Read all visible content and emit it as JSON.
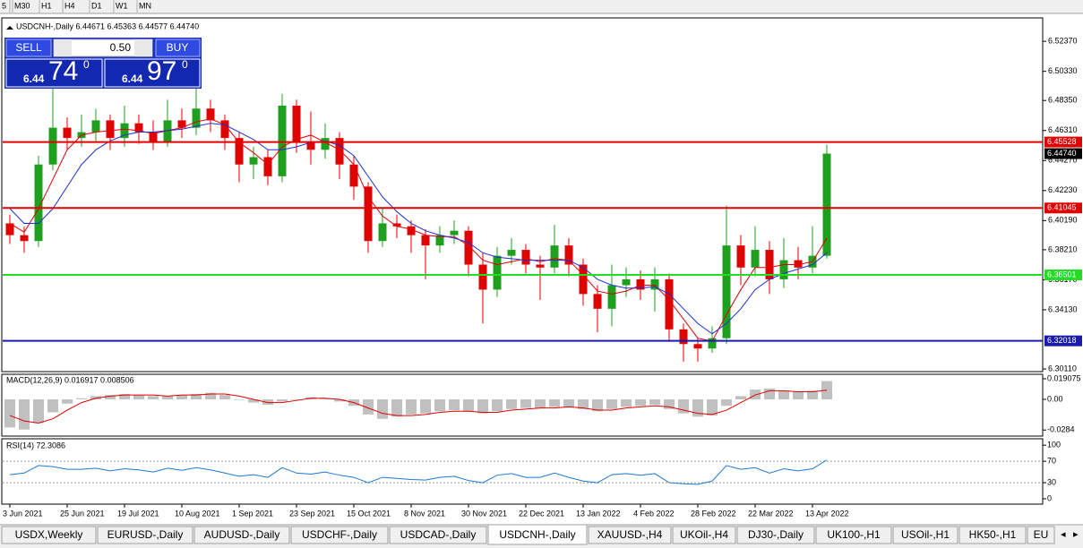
{
  "toolbar": [
    "5",
    "M30",
    "H1",
    "H4",
    "D1",
    "W1",
    "MN"
  ],
  "trade_panel": {
    "sell": "SELL",
    "lot": "0.50",
    "buy": "BUY",
    "bid": {
      "big": "6.44",
      "main": "74",
      "sup": "0"
    },
    "ask": {
      "big": "6.44",
      "main": "97",
      "sup": "0"
    }
  },
  "tabs": [
    "USDX,Weekly",
    "EURUSD-,Daily",
    "AUDUSD-,Daily",
    "USDCHF-,Daily",
    "USDCAD-,Daily",
    "USDCNH-,Daily",
    "XAUUSD-,H4",
    "UKOil-,H4",
    "DJ30-,Daily",
    "UK100-,H1",
    "USOil-,H1",
    "HK50-,H1",
    "EU"
  ],
  "active_tab": 5,
  "chart_data": [
    {
      "type": "candlestick",
      "title": "USDCNH-,Daily  6.44671 6.45363 6.44577 6.44740",
      "x": [
        "3 Jun 2021",
        null,
        null,
        null,
        "25 Jun 2021",
        null,
        null,
        null,
        "19 Jul 2021",
        null,
        null,
        null,
        "10 Aug 2021",
        null,
        null,
        null,
        "1 Sep 2021",
        null,
        null,
        null,
        "23 Sep 2021",
        null,
        null,
        null,
        "15 Oct 2021",
        null,
        null,
        null,
        "8 Nov 2021",
        null,
        null,
        null,
        "30 Nov 2021",
        null,
        null,
        null,
        "22 Dec 2021",
        null,
        null,
        null,
        "13 Jan 2022",
        null,
        null,
        null,
        "4 Feb 2022",
        null,
        null,
        null,
        "28 Feb 2022",
        null,
        null,
        null,
        "22 Mar 2022",
        null,
        null,
        null,
        "13 Apr 2022",
        null
      ],
      "open": [
        6.4,
        6.392,
        6.388,
        6.44,
        6.465,
        6.458,
        6.462,
        6.47,
        6.458,
        6.468,
        6.462,
        6.455,
        6.47,
        6.465,
        6.478,
        6.47,
        6.458,
        6.44,
        6.445,
        6.432,
        6.48,
        6.455,
        6.45,
        6.458,
        6.44,
        6.425,
        6.388,
        6.4,
        6.398,
        6.392,
        6.385,
        6.392,
        6.395,
        6.372,
        6.355,
        6.378,
        6.382,
        6.372,
        6.37,
        6.385,
        6.372,
        6.352,
        6.342,
        6.358,
        6.362,
        6.355,
        6.362,
        6.328,
        6.318,
        6.315,
        6.322,
        6.385,
        6.37,
        6.382,
        6.362,
        6.375,
        6.37,
        6.378
      ],
      "high": [
        6.406,
        6.398,
        6.446,
        6.492,
        6.472,
        6.474,
        6.478,
        6.474,
        6.48,
        6.474,
        6.47,
        6.484,
        6.478,
        6.5,
        6.484,
        6.474,
        6.462,
        6.452,
        6.45,
        6.488,
        6.484,
        6.476,
        6.468,
        6.462,
        6.446,
        6.428,
        6.41,
        6.406,
        6.402,
        6.396,
        6.398,
        6.402,
        6.398,
        6.38,
        6.384,
        6.39,
        6.386,
        6.378,
        6.399,
        6.39,
        6.376,
        6.358,
        6.372,
        6.37,
        6.368,
        6.37,
        6.366,
        6.332,
        6.322,
        6.33,
        6.412,
        6.392,
        6.398,
        6.388,
        6.39,
        6.384,
        6.398,
        6.45363
      ],
      "low": [
        6.386,
        6.38,
        6.384,
        6.436,
        6.45,
        6.452,
        6.456,
        6.45,
        6.452,
        6.454,
        6.45,
        6.452,
        6.458,
        6.46,
        6.462,
        6.45,
        6.428,
        6.43,
        6.426,
        6.428,
        6.448,
        6.44,
        6.444,
        6.43,
        6.416,
        6.38,
        6.384,
        6.39,
        6.38,
        6.362,
        6.38,
        6.386,
        6.364,
        6.332,
        6.35,
        6.372,
        6.366,
        6.348,
        6.366,
        6.364,
        6.344,
        6.326,
        6.33,
        6.35,
        6.348,
        6.34,
        6.32,
        6.306,
        6.306,
        6.312,
        6.318,
        6.358,
        6.364,
        6.352,
        6.356,
        6.362,
        6.366,
        6.376
      ],
      "close": [
        6.392,
        6.388,
        6.44,
        6.465,
        6.458,
        6.462,
        6.47,
        6.458,
        6.468,
        6.462,
        6.455,
        6.47,
        6.465,
        6.478,
        6.47,
        6.458,
        6.44,
        6.445,
        6.432,
        6.48,
        6.455,
        6.45,
        6.458,
        6.44,
        6.425,
        6.388,
        6.4,
        6.398,
        6.392,
        6.385,
        6.392,
        6.395,
        6.372,
        6.355,
        6.378,
        6.382,
        6.372,
        6.37,
        6.385,
        6.372,
        6.352,
        6.342,
        6.358,
        6.362,
        6.355,
        6.362,
        6.328,
        6.318,
        6.315,
        6.322,
        6.385,
        6.37,
        6.382,
        6.362,
        6.375,
        6.37,
        6.378,
        6.4474
      ],
      "up_color": "#1ea01e",
      "down_color": "#e00000",
      "moving_averages": [
        {
          "color": "#e00000",
          "values": [
            6.4,
            6.394,
            6.41,
            6.43,
            6.45,
            6.46,
            6.462,
            6.463,
            6.464,
            6.463,
            6.461,
            6.463,
            6.465,
            6.469,
            6.471,
            6.467,
            6.455,
            6.448,
            6.44,
            6.452,
            6.457,
            6.46,
            6.455,
            6.45,
            6.44,
            6.418,
            6.405,
            6.398,
            6.396,
            6.392,
            6.391,
            6.391,
            6.385,
            6.375,
            6.372,
            6.374,
            6.376,
            6.374,
            6.376,
            6.375,
            6.365,
            6.354,
            6.352,
            6.354,
            6.358,
            6.358,
            6.348,
            6.335,
            6.322,
            6.32,
            6.338,
            6.355,
            6.37,
            6.37,
            6.372,
            6.372,
            6.374,
            6.39
          ]
        },
        {
          "color": "#1f2fd0",
          "values": [
            6.41,
            6.4,
            6.4,
            6.41,
            6.425,
            6.44,
            6.45,
            6.456,
            6.46,
            6.462,
            6.462,
            6.463,
            6.464,
            6.466,
            6.468,
            6.467,
            6.462,
            6.457,
            6.45,
            6.45,
            6.452,
            6.455,
            6.456,
            6.453,
            6.446,
            6.432,
            6.418,
            6.408,
            6.4,
            6.395,
            6.392,
            6.39,
            6.387,
            6.38,
            6.377,
            6.376,
            6.375,
            6.375,
            6.375,
            6.375,
            6.37,
            6.362,
            6.358,
            6.356,
            6.356,
            6.357,
            6.352,
            6.342,
            6.332,
            6.325,
            6.332,
            6.342,
            6.355,
            6.362,
            6.366,
            6.369,
            6.372,
            6.38
          ]
        }
      ],
      "ylim": [
        6.2993,
        6.5396
      ],
      "yticks": [
        {
          "value": 6.5237,
          "label": "6.52370"
        },
        {
          "value": 6.5033,
          "label": "6.50330"
        },
        {
          "value": 6.4835,
          "label": "6.48350"
        },
        {
          "value": 6.4631,
          "label": "6.46310"
        },
        {
          "value": 6.4427,
          "label": "6.44270"
        },
        {
          "value": 6.4223,
          "label": "6.42230"
        },
        {
          "value": 6.4019,
          "label": "6.40190"
        },
        {
          "value": 6.3821,
          "label": "6.38210"
        },
        {
          "value": 6.3617,
          "label": "6.36170"
        },
        {
          "value": 6.3413,
          "label": "6.34130"
        },
        {
          "value": 6.3011,
          "label": "6.30110"
        }
      ],
      "levels": [
        {
          "value": 6.45528,
          "label": "6.45528",
          "color": "#e00000"
        },
        {
          "value": 6.41045,
          "label": "6.41045",
          "color": "#e00000"
        },
        {
          "value": 6.36501,
          "label": "6.36501",
          "color": "#22dd22"
        },
        {
          "value": 6.32018,
          "label": "6.32018",
          "color": "#1a1ab0"
        }
      ],
      "last_price": {
        "value": 6.4474,
        "label": "6.44740"
      }
    },
    {
      "type": "macd",
      "title": "MACD(12,26,9) 0.016917 0.008506",
      "histogram": {
        "color": "#c0c0c0",
        "values": [
          -0.026,
          -0.028,
          -0.022,
          -0.012,
          -0.004,
          0.001,
          0.003,
          0.004,
          0.005,
          0.004,
          0.003,
          0.003,
          0.004,
          0.005,
          0.006,
          0.004,
          0.0,
          -0.003,
          -0.005,
          -0.002,
          0.0,
          0.002,
          0.001,
          -0.002,
          -0.006,
          -0.014,
          -0.018,
          -0.016,
          -0.014,
          -0.013,
          -0.011,
          -0.01,
          -0.011,
          -0.013,
          -0.011,
          -0.009,
          -0.008,
          -0.008,
          -0.007,
          -0.007,
          -0.009,
          -0.011,
          -0.009,
          -0.007,
          -0.006,
          -0.005,
          -0.009,
          -0.013,
          -0.016,
          -0.015,
          -0.006,
          0.003,
          0.009,
          0.01,
          0.008,
          0.007,
          0.008,
          0.016917
        ]
      },
      "signal": {
        "color": "#e00000",
        "values": [
          -0.015,
          -0.02,
          -0.022,
          -0.018,
          -0.01,
          -0.003,
          0.001,
          0.003,
          0.004,
          0.004,
          0.004,
          0.003,
          0.004,
          0.004,
          0.005,
          0.005,
          0.003,
          0.0,
          -0.003,
          -0.003,
          -0.001,
          0.001,
          0.001,
          0.0,
          -0.003,
          -0.008,
          -0.013,
          -0.015,
          -0.015,
          -0.014,
          -0.012,
          -0.011,
          -0.011,
          -0.012,
          -0.012,
          -0.01,
          -0.009,
          -0.008,
          -0.008,
          -0.007,
          -0.008,
          -0.01,
          -0.01,
          -0.008,
          -0.007,
          -0.006,
          -0.007,
          -0.01,
          -0.013,
          -0.014,
          -0.01,
          -0.003,
          0.004,
          0.008,
          0.008,
          0.007,
          0.007,
          0.008506
        ]
      },
      "ylim": [
        -0.034,
        0.0232
      ],
      "yticks": [
        0.019075,
        {
          "value": 0,
          "label": "0.00"
        },
        -0.0284
      ]
    },
    {
      "type": "line",
      "title": "RSI(14) 72.3086",
      "color": "#1e78d0",
      "values": [
        45,
        48,
        62,
        60,
        55,
        55,
        57,
        52,
        56,
        54,
        50,
        57,
        53,
        58,
        54,
        48,
        42,
        45,
        40,
        58,
        48,
        46,
        50,
        44,
        40,
        30,
        40,
        38,
        36,
        35,
        40,
        42,
        34,
        30,
        44,
        47,
        40,
        40,
        48,
        40,
        33,
        30,
        45,
        47,
        44,
        47,
        30,
        28,
        27,
        33,
        62,
        55,
        58,
        48,
        56,
        52,
        56,
        72.3086
      ],
      "ylim": [
        -10,
        112
      ],
      "yticks": [
        100,
        70,
        30,
        0
      ],
      "dashed_levels": [
        70,
        30
      ]
    }
  ]
}
